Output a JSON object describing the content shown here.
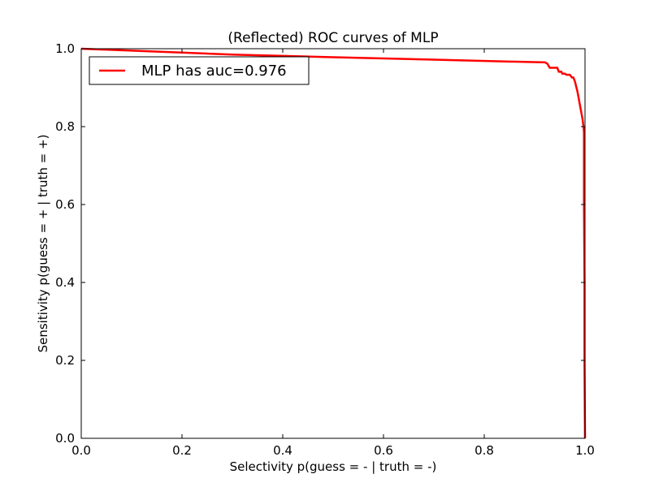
{
  "chart_data": {
    "type": "line",
    "title": "(Reflected) ROC curves of MLP",
    "xlabel": "Selectivity p(guess = - | truth = -)",
    "ylabel": "Sensitivity p(guess = + | truth = +)",
    "xlim": [
      0.0,
      1.0
    ],
    "ylim": [
      0.0,
      1.0
    ],
    "xticks": [
      0.0,
      0.2,
      0.4,
      0.6,
      0.8,
      1.0
    ],
    "yticks": [
      0.0,
      0.2,
      0.4,
      0.6,
      0.8,
      1.0
    ],
    "xtick_labels": [
      "0.0",
      "0.2",
      "0.4",
      "0.6",
      "0.8",
      "1.0"
    ],
    "ytick_labels": [
      "0.0",
      "0.2",
      "0.4",
      "0.6",
      "0.8",
      "1.0"
    ],
    "grid": false,
    "legend_position": "top-left",
    "series": [
      {
        "name": "MLP has auc=0.976",
        "color": "#ff0000",
        "x": [
          0.0,
          0.1,
          0.3,
          0.5,
          0.7,
          0.85,
          0.915,
          0.92,
          0.925,
          0.93,
          0.945,
          0.948,
          0.953,
          0.955,
          0.96,
          0.963,
          0.97,
          0.974,
          0.977,
          0.98,
          0.985,
          0.99,
          0.995,
          0.997,
          0.998,
          0.998,
          0.999,
          0.999,
          1.0
        ],
        "y": [
          1.0,
          0.995,
          0.985,
          0.978,
          0.972,
          0.967,
          0.965,
          0.965,
          0.962,
          0.951,
          0.951,
          0.941,
          0.941,
          0.936,
          0.936,
          0.933,
          0.933,
          0.926,
          0.926,
          0.916,
          0.89,
          0.855,
          0.82,
          0.8,
          0.785,
          0.6,
          0.4,
          0.2,
          0.0
        ]
      }
    ]
  }
}
